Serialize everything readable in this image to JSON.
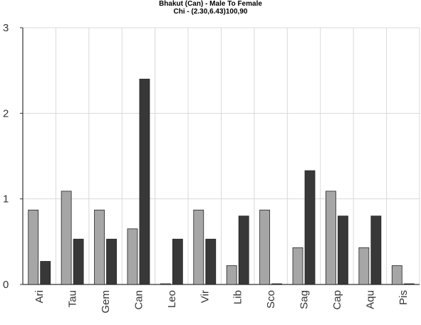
{
  "chart_data": {
    "type": "bar",
    "title": "Bhakut (Can) - Male To Female",
    "subtitle": "Chi - (2.30,6.43)100,90",
    "xlabel": "",
    "ylabel": "",
    "ylim": [
      0,
      3
    ],
    "yticks": [
      0,
      1,
      2,
      3
    ],
    "grid": true,
    "legend": "none",
    "categories": [
      "Ari",
      "Tau",
      "Gem",
      "Can",
      "Leo",
      "Vir",
      "Lib",
      "Sco",
      "Sag",
      "Cap",
      "Aqu",
      "Pis"
    ],
    "series": [
      {
        "color": "#a6a6a6",
        "values": [
          0.87,
          1.09,
          0.87,
          0.65,
          0.0,
          0.87,
          0.22,
          0.87,
          0.43,
          1.09,
          0.43,
          0.22
        ]
      },
      {
        "color": "#383838",
        "values": [
          0.27,
          0.53,
          0.53,
          2.4,
          0.53,
          0.53,
          0.8,
          0.0,
          1.33,
          0.8,
          0.8,
          0.0
        ]
      }
    ]
  }
}
